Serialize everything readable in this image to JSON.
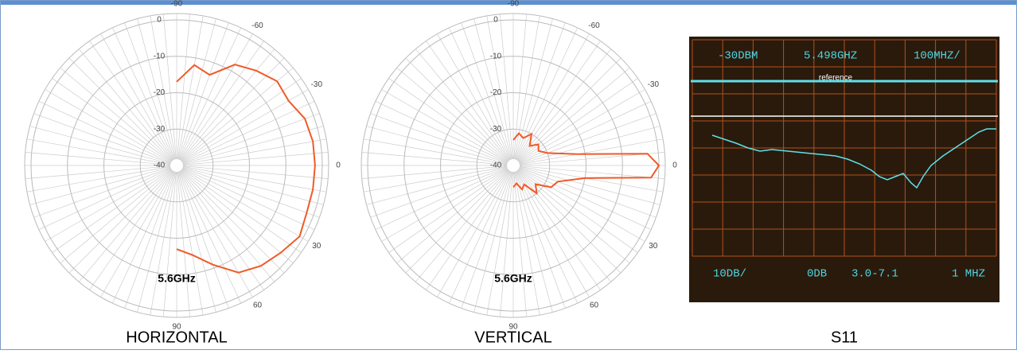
{
  "chart_data": [
    {
      "type": "polar",
      "caption": "HORIZONTAL",
      "annotation": "5.6GHz",
      "color": "#f05a28",
      "rlim": [
        -40,
        0
      ],
      "rticks": [
        0,
        -10,
        -20,
        -30,
        -40
      ],
      "thetaticks": [
        -90,
        -60,
        -30,
        0,
        30,
        60,
        90
      ],
      "x": [
        -90,
        -80,
        -70,
        -60,
        -50,
        -40,
        -30,
        -20,
        -10,
        0,
        10,
        20,
        30,
        40,
        50,
        60,
        70,
        80,
        90
      ],
      "values": [
        -17,
        -12,
        -13.5,
        -8,
        -6,
        -4,
        -4.5,
        -2.5,
        -2,
        -2,
        -2,
        -2,
        -1,
        -2.7,
        -4,
        -6,
        -11,
        -15,
        -17
      ]
    },
    {
      "type": "polar",
      "caption": "VERTICAL",
      "annotation": "5.6GHz",
      "color": "#f05a28",
      "rlim": [
        -40,
        0
      ],
      "rticks": [
        0,
        -10,
        -20,
        -30,
        -40
      ],
      "thetaticks": [
        -90,
        -60,
        -30,
        0,
        30,
        60,
        90
      ],
      "x": [
        -90,
        -80,
        -70,
        -60,
        -50,
        -40,
        -30,
        -20,
        -10,
        -5,
        0,
        5,
        10,
        20,
        30,
        40,
        50,
        60,
        70,
        80,
        90
      ],
      "values": [
        -33,
        -31,
        -32,
        -30,
        -33,
        -31,
        -32,
        -30,
        -22,
        -3,
        0,
        -2,
        -20,
        -27,
        -28,
        -32,
        -30,
        -34,
        -33,
        -35,
        -34
      ]
    }
  ],
  "s11": {
    "caption": "S11",
    "screen_top": [
      "-30DBM",
      "5.498GHZ",
      "100MHZ/"
    ],
    "reference": "reference",
    "screen_bottom": [
      "10DB/",
      "0DB",
      "3.0-7.1",
      "1 MHZ"
    ]
  }
}
